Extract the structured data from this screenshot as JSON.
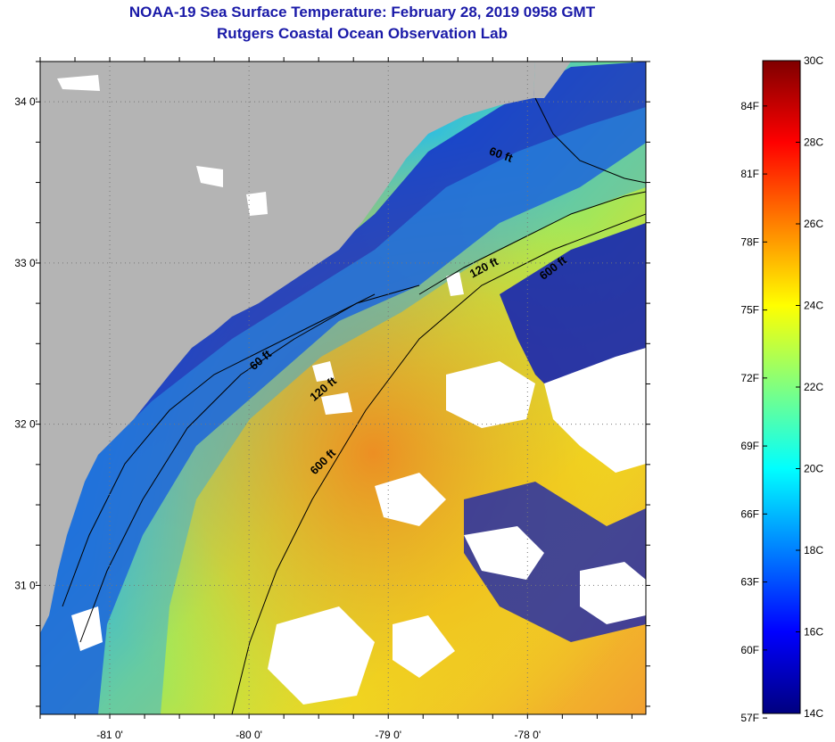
{
  "title": {
    "line1": "NOAA-19 Sea Surface Temperature:  February 28, 2019 0958 GMT",
    "line2": "Rutgers Coastal Ocean Observation Lab"
  },
  "map": {
    "lon_range": [
      -81.5,
      -77.15
    ],
    "lat_range": [
      30.2,
      34.25
    ],
    "lat_ticks": [
      {
        "value": 34.0,
        "label": "34 0'"
      },
      {
        "value": 33.0,
        "label": "33 0'"
      },
      {
        "value": 32.0,
        "label": "32 0'"
      },
      {
        "value": 31.0,
        "label": "31 0'"
      }
    ],
    "lon_ticks": [
      {
        "value": -81.0,
        "label": "-81 0'"
      },
      {
        "value": -80.0,
        "label": "-80 0'"
      },
      {
        "value": -79.0,
        "label": "-79 0'"
      },
      {
        "value": -78.0,
        "label": "-78 0'"
      }
    ],
    "contour_labels": [
      {
        "text": "60 ft",
        "lon": -78.2,
        "lat": 33.65,
        "angle": 20
      },
      {
        "text": "120 ft",
        "lon": -78.3,
        "lat": 32.95,
        "angle": -28
      },
      {
        "text": "600 ft",
        "lon": -77.8,
        "lat": 32.95,
        "angle": -38
      },
      {
        "text": "60 ft",
        "lon": -79.9,
        "lat": 32.38,
        "angle": -40
      },
      {
        "text": "120 ft",
        "lon": -79.45,
        "lat": 32.2,
        "angle": -40
      },
      {
        "text": "600 ft",
        "lon": -79.45,
        "lat": 31.75,
        "angle": -45
      }
    ],
    "colors": {
      "land": "#b4b4b4",
      "cloud": "#ffffff",
      "deep_blue": "#0a14b4"
    }
  },
  "colorbar": {
    "celsius_range": [
      14,
      30
    ],
    "celsius_labels": [
      "30C",
      "28C",
      "26C",
      "24C",
      "22C",
      "20C",
      "18C",
      "16C",
      "14C"
    ],
    "fahrenheit_labels": [
      {
        "value": 84,
        "label": "84F"
      },
      {
        "value": 81,
        "label": "81F"
      },
      {
        "value": 78,
        "label": "78F"
      },
      {
        "value": 75,
        "label": "75F"
      },
      {
        "value": 72,
        "label": "72F"
      },
      {
        "value": 69,
        "label": "69F"
      },
      {
        "value": 66,
        "label": "66F"
      },
      {
        "value": 63,
        "label": "63F"
      },
      {
        "value": 60,
        "label": "60F"
      },
      {
        "value": 57,
        "label": "57F"
      }
    ],
    "gradient_stops": [
      "#00007f",
      "#0000ff",
      "#0080ff",
      "#00ffff",
      "#80ff80",
      "#ffff00",
      "#ff8000",
      "#ff0000",
      "#7f0000"
    ]
  }
}
